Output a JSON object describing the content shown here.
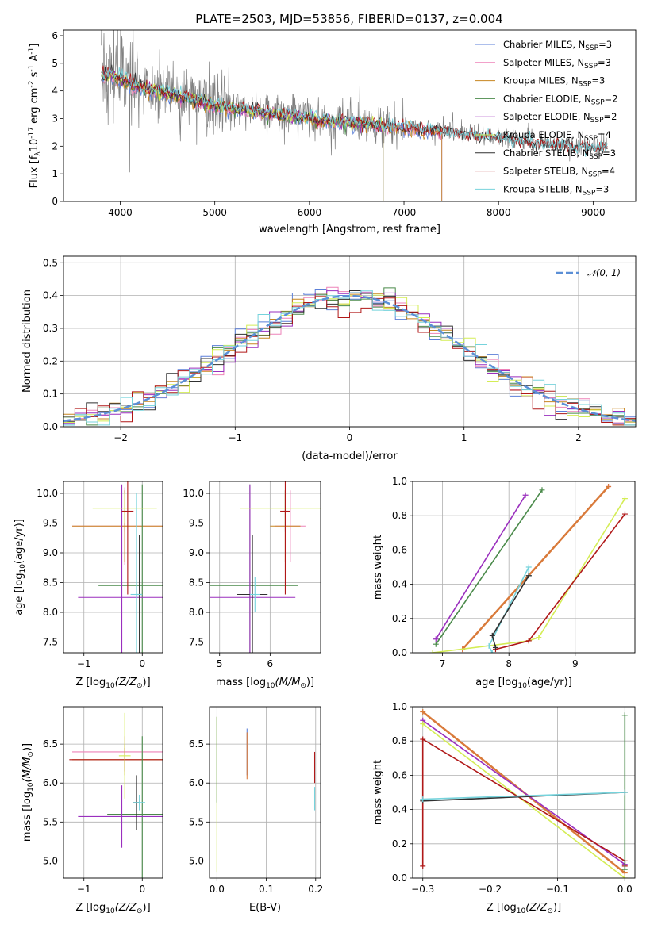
{
  "title": "PLATE=2503, MJD=53856, FIBERID=0137, z=0.004",
  "colors": {
    "observed": "#808080",
    "chabrier_miles": "#5b7fd8",
    "salpeter_miles": "#ee82b8",
    "kroupa_miles": "#c7851f",
    "chabrier_elodie": "#4a8a4a",
    "salpeter_elodie": "#9a2fbe",
    "kroupa_elodie": "#d4ed55",
    "chabrier_stelib": "#303030",
    "salpeter_stelib": "#b01818",
    "kroupa_stelib": "#76d3dc",
    "thick_pair": "#d97a3a",
    "normal_curve": "#5b8fd6"
  },
  "chart_data": [
    {
      "id": "spectrum",
      "type": "line",
      "title": "PLATE=2503, MJD=53856, FIBERID=0137, z=0.004",
      "xlabel": "wavelength [Angstrom, rest frame]",
      "ylabel_main": "Flux [f",
      "ylabel_sub": "λ",
      "ylabel_rest": "10",
      "ylabel_exp": "-17",
      "ylabel_tail": " erg cm",
      "ylabel_exp2": "-2",
      "ylabel_tail2": " s",
      "ylabel_exp3": "-1",
      "ylabel_tail3": " A",
      "ylabel_exp4": "-1",
      "ylabel_end": "]",
      "xlim": [
        3400,
        9450
      ],
      "ylim": [
        0,
        6.2
      ],
      "xticks": [
        "4000",
        "5000",
        "6000",
        "7000",
        "8000",
        "9000"
      ],
      "yticks": [
        "0",
        "1",
        "2",
        "3",
        "4",
        "5",
        "6"
      ],
      "xtick_values": [
        4000,
        5000,
        6000,
        7000,
        8000,
        9000
      ],
      "ytick_values": [
        0,
        1,
        2,
        3,
        4,
        5,
        6
      ],
      "legend_position": "upper right",
      "series": [
        {
          "name": "Chabrier MILES, N",
          "sub": "SSP",
          "suffix": "=3",
          "color_key": "chabrier_miles"
        },
        {
          "name": "Salpeter MILES, N",
          "sub": "SSP",
          "suffix": "=3",
          "color_key": "salpeter_miles"
        },
        {
          "name": "Kroupa MILES, N",
          "sub": "SSP",
          "suffix": "=3",
          "color_key": "kroupa_miles"
        },
        {
          "name": "Chabrier ELODIE, N",
          "sub": "SSP",
          "suffix": "=2",
          "color_key": "chabrier_elodie"
        },
        {
          "name": "Salpeter ELODIE, N",
          "sub": "SSP",
          "suffix": "=2",
          "color_key": "salpeter_elodie"
        },
        {
          "name": "Kroupa ELODIE, N",
          "sub": "SSP",
          "suffix": "=4",
          "color_key": "kroupa_elodie"
        },
        {
          "name": "Chabrier STELIB, N",
          "sub": "SSP",
          "suffix": "=3",
          "color_key": "chabrier_stelib"
        },
        {
          "name": "Salpeter STELIB, N",
          "sub": "SSP",
          "suffix": "=4",
          "color_key": "salpeter_stelib"
        },
        {
          "name": "Kroupa STELIB, N",
          "sub": "SSP",
          "suffix": "=3",
          "color_key": "kroupa_stelib"
        }
      ],
      "continuum": {
        "x": [
          3800,
          3900,
          4000,
          4100,
          4300,
          4500,
          4700,
          4900,
          5200,
          5500,
          5800,
          6100,
          6400,
          6700,
          7000,
          7300,
          7600,
          7900,
          8200,
          8500,
          8800,
          9100
        ],
        "y": [
          4.6,
          4.7,
          4.5,
          4.3,
          4.1,
          3.95,
          3.8,
          3.6,
          3.4,
          3.25,
          3.15,
          3.0,
          2.9,
          2.8,
          2.7,
          2.6,
          2.45,
          2.35,
          2.2,
          2.1,
          2.0,
          1.95
        ]
      }
    },
    {
      "id": "residuals",
      "type": "bar",
      "xlabel": "(data-model)/error",
      "ylabel": "Normed distribution",
      "xlim": [
        -2.5,
        2.5
      ],
      "ylim": [
        0,
        0.52
      ],
      "xticks": [
        "−2",
        "−1",
        "0",
        "1",
        "2"
      ],
      "yticks": [
        "0.0",
        "0.1",
        "0.2",
        "0.3",
        "0.4",
        "0.5"
      ],
      "xtick_values": [
        -2,
        -1,
        0,
        1,
        2
      ],
      "ytick_values": [
        0,
        0.1,
        0.2,
        0.3,
        0.4,
        0.5
      ],
      "legend_label": "𝒩(0, 1)",
      "legend_position": "upper right",
      "grid": true
    },
    {
      "id": "age_vs_Z",
      "type": "scatter",
      "xlabel_main": "Z [log",
      "xlabel_sub": "10",
      "xlabel_mid": "(Z/Z",
      "xlabel_sub2": "⊙",
      "xlabel_end": ")]",
      "ylabel_main": "age  [log",
      "ylabel_sub": "10",
      "ylabel_end": "(age/yr)]",
      "xlim": [
        -1.35,
        0.35
      ],
      "ylim": [
        7.32,
        10.2
      ],
      "xticks": [
        "−1",
        "0"
      ],
      "yticks": [
        "7.5",
        "8.0",
        "8.5",
        "9.0",
        "9.5",
        "10.0"
      ],
      "xtick_values": [
        -1,
        0
      ],
      "ytick_values": [
        7.5,
        8.0,
        8.5,
        9.0,
        9.5,
        10.0
      ],
      "grid": true,
      "points": [
        {
          "color_key": "chabrier_miles",
          "x": -0.3,
          "y": 9.7,
          "xerr": 0.05,
          "yerr": 0.35
        },
        {
          "color_key": "salpeter_miles",
          "x": -0.3,
          "y": 9.45,
          "xerr": 0.9,
          "yerr": 0.65
        },
        {
          "color_key": "kroupa_miles",
          "x": -0.3,
          "y": 9.45,
          "xerr": 0.9,
          "yerr": 0.6
        },
        {
          "color_key": "chabrier_elodie",
          "x": 0.0,
          "y": 8.45,
          "xerr": 0.75,
          "yerr": 1.7
        },
        {
          "color_key": "salpeter_elodie",
          "x": -0.35,
          "y": 8.25,
          "xerr": 0.75,
          "yerr": 1.9
        },
        {
          "color_key": "kroupa_elodie",
          "x": -0.3,
          "y": 9.75,
          "xerr": 0.55,
          "yerr": 0.25
        },
        {
          "color_key": "chabrier_stelib",
          "x": -0.05,
          "y": 8.3,
          "xerr": 0.05,
          "yerr": 1.0
        },
        {
          "color_key": "salpeter_stelib",
          "x": -0.25,
          "y": 9.7,
          "xerr": 0.1,
          "yerr": 1.4
        },
        {
          "color_key": "kroupa_stelib",
          "x": -0.1,
          "y": 8.3,
          "xerr": 0.1,
          "yerr": 1.7
        }
      ]
    },
    {
      "id": "age_vs_mass",
      "type": "scatter",
      "xlabel_main": "mass [log",
      "xlabel_sub": "10",
      "xlabel_mid": "(M/M",
      "xlabel_sub2": "⊙",
      "xlabel_end": ")]",
      "xlim": [
        4.8,
        7.0
      ],
      "ylim": [
        7.32,
        10.2
      ],
      "xticks": [
        "5",
        "6"
      ],
      "yticks": [
        "7.5",
        "8.0",
        "8.5",
        "9.0",
        "9.5",
        "10.0"
      ],
      "xtick_values": [
        5,
        6
      ],
      "ytick_values": [
        7.5,
        8.0,
        8.5,
        9.0,
        9.5,
        10.0
      ],
      "grid": true,
      "points": [
        {
          "color_key": "chabrier_miles",
          "x": 6.3,
          "y": 9.7,
          "xerr": 0.05,
          "yerr": 0.35
        },
        {
          "color_key": "salpeter_miles",
          "x": 6.4,
          "y": 9.45,
          "xerr": 0.3,
          "yerr": 0.6
        },
        {
          "color_key": "kroupa_miles",
          "x": 6.3,
          "y": 9.45,
          "xerr": 0.3,
          "yerr": 0.6
        },
        {
          "color_key": "chabrier_elodie",
          "x": 5.6,
          "y": 8.45,
          "xerr": 0.95,
          "yerr": 1.7
        },
        {
          "color_key": "salpeter_elodie",
          "x": 5.6,
          "y": 8.25,
          "xerr": 0.9,
          "yerr": 1.9
        },
        {
          "color_key": "kroupa_elodie",
          "x": 6.3,
          "y": 9.75,
          "xerr": 0.9,
          "yerr": 0.3
        },
        {
          "color_key": "chabrier_stelib",
          "x": 5.65,
          "y": 8.3,
          "xerr": 0.3,
          "yerr": 1.0
        },
        {
          "color_key": "salpeter_stelib",
          "x": 6.3,
          "y": 9.7,
          "xerr": 0.1,
          "yerr": 1.4
        },
        {
          "color_key": "kroupa_stelib",
          "x": 5.7,
          "y": 8.3,
          "xerr": 0.1,
          "yerr": 0.3
        }
      ]
    },
    {
      "id": "massweight_vs_age",
      "type": "line",
      "xlabel_main": "age  [log",
      "xlabel_sub": "10",
      "xlabel_end": "(age/yr)]",
      "ylabel": "mass weight",
      "xlim": [
        6.55,
        9.9
      ],
      "ylim": [
        0,
        1.0
      ],
      "xticks": [
        "7",
        "8",
        "9"
      ],
      "yticks": [
        "0.0",
        "0.2",
        "0.4",
        "0.6",
        "0.8",
        "1.0"
      ],
      "xtick_values": [
        7,
        8,
        9
      ],
      "ytick_values": [
        0,
        0.2,
        0.4,
        0.6,
        0.8,
        1.0
      ],
      "grid": true,
      "series": [
        {
          "color_key": "chabrier_elodie",
          "x": [
            6.9,
            8.5
          ],
          "y": [
            0.05,
            0.95
          ]
        },
        {
          "color_key": "salpeter_elodie",
          "x": [
            6.9,
            8.25
          ],
          "y": [
            0.08,
            0.92
          ]
        },
        {
          "color_key": "salpeter_miles",
          "x": [
            7.3,
            9.5
          ],
          "y": [
            0.02,
            0.97
          ]
        },
        {
          "color_key": "thick_pair",
          "x": [
            7.3,
            9.5
          ],
          "y": [
            0.02,
            0.97
          ]
        },
        {
          "color_key": "kroupa_elodie",
          "x": [
            6.85,
            8.3,
            8.45,
            9.75
          ],
          "y": [
            0.0,
            0.07,
            0.09,
            0.9
          ]
        },
        {
          "color_key": "salpeter_stelib",
          "x": [
            7.8,
            8.3,
            9.75
          ],
          "y": [
            0.02,
            0.07,
            0.81
          ]
        },
        {
          "color_key": "kroupa_stelib",
          "x": [
            7.75,
            7.7,
            8.3,
            8.3
          ],
          "y": [
            0.0,
            0.04,
            0.5,
            0.45
          ]
        },
        {
          "color_key": "chabrier_stelib",
          "x": [
            7.8,
            7.75,
            8.3,
            8.3
          ],
          "y": [
            0.03,
            0.1,
            0.45,
            0.45
          ]
        }
      ]
    },
    {
      "id": "mass_vs_Z",
      "type": "scatter",
      "xlabel_main": "Z [log",
      "xlabel_sub": "10",
      "xlabel_mid": "(Z/Z",
      "xlabel_sub2": "⊙",
      "xlabel_end": ")]",
      "ylabel_main": "mass [log",
      "ylabel_sub": "10",
      "ylabel_mid": "(M/M",
      "ylabel_sub2": "⊙",
      "ylabel_end": ")]",
      "xlim": [
        -1.35,
        0.35
      ],
      "ylim": [
        4.78,
        6.98
      ],
      "xticks": [
        "−1",
        "0"
      ],
      "yticks": [
        "5.0",
        "5.5",
        "6.0",
        "6.5"
      ],
      "xtick_values": [
        -1,
        0
      ],
      "ytick_values": [
        5.0,
        5.5,
        6.0,
        6.5
      ],
      "grid": true,
      "points": [
        {
          "color_key": "salpeter_miles",
          "x": -0.3,
          "y": 6.4,
          "xerr": 0.9,
          "yerr": 0.2
        },
        {
          "color_key": "kroupa_miles",
          "x": -0.3,
          "y": 6.3,
          "xerr": 0.9,
          "yerr": 0.2
        },
        {
          "color_key": "salpeter_stelib",
          "x": -0.3,
          "y": 6.3,
          "xerr": 0.95,
          "yerr": 0.15
        },
        {
          "color_key": "kroupa_elodie",
          "x": -0.3,
          "y": 6.35,
          "xerr": 0.1,
          "yerr": 0.55
        },
        {
          "color_key": "chabrier_elodie",
          "x": 0.0,
          "y": 5.6,
          "xerr": 0.6,
          "yerr": 1.0
        },
        {
          "color_key": "salpeter_elodie",
          "x": -0.35,
          "y": 5.57,
          "xerr": 0.75,
          "yerr": 0.4
        },
        {
          "color_key": "chabrier_stelib",
          "x": -0.1,
          "y": 5.75,
          "xerr": 0.05,
          "yerr": 0.35
        },
        {
          "color_key": "kroupa_stelib",
          "x": -0.05,
          "y": 5.75,
          "xerr": 0.1,
          "yerr": 0.1
        }
      ]
    },
    {
      "id": "mass_vs_EBV",
      "type": "scatter",
      "xlabel": "E(B-V)",
      "xlim": [
        -0.015,
        0.21
      ],
      "ylim": [
        4.78,
        6.98
      ],
      "xticks": [
        "0.0",
        "0.1",
        "0.2"
      ],
      "yticks": [
        "5.0",
        "5.5",
        "6.0",
        "6.5"
      ],
      "xtick_values": [
        0,
        0.1,
        0.2
      ],
      "ytick_values": [
        5.0,
        5.5,
        6.0,
        6.5
      ],
      "grid": true,
      "points": [
        {
          "color_key": "kroupa_elodie",
          "x": 0.0,
          "y": 5.85,
          "xerr": 0.0,
          "yerr": 1.0
        },
        {
          "color_key": "chabrier_elodie",
          "x": 0.0,
          "y": 6.3,
          "xerr": 0.0,
          "yerr": 0.55
        },
        {
          "color_key": "chabrier_miles",
          "x": 0.061,
          "y": 6.4,
          "xerr": 0.0,
          "yerr": 0.3
        },
        {
          "color_key": "thick_pair",
          "x": 0.061,
          "y": 6.35,
          "xerr": 0.0,
          "yerr": 0.3
        },
        {
          "color_key": "salpeter_stelib",
          "x": 0.198,
          "y": 6.2,
          "xerr": 0.0,
          "yerr": 0.2
        },
        {
          "color_key": "kroupa_stelib",
          "x": 0.198,
          "y": 5.8,
          "xerr": 0.0,
          "yerr": 0.15
        }
      ]
    },
    {
      "id": "massweight_vs_Z",
      "type": "line",
      "xlabel_main": "Z [log",
      "xlabel_sub": "10",
      "xlabel_mid": "(Z/Z",
      "xlabel_sub2": "⊙",
      "xlabel_end": ")]",
      "ylabel": "mass weight",
      "xlim": [
        -0.315,
        0.015
      ],
      "ylim": [
        0,
        1.0
      ],
      "xticks": [
        "−0.3",
        "−0.2",
        "−0.1",
        "0.0"
      ],
      "yticks": [
        "0.0",
        "0.2",
        "0.4",
        "0.6",
        "0.8",
        "1.0"
      ],
      "xtick_values": [
        -0.3,
        -0.2,
        -0.1,
        0.0
      ],
      "ytick_values": [
        0,
        0.2,
        0.4,
        0.6,
        0.8,
        1.0
      ],
      "grid": true,
      "series": [
        {
          "color_key": "thick_pair",
          "x": [
            -0.3,
            0.0
          ],
          "y": [
            0.97,
            0.03
          ]
        },
        {
          "color_key": "salpeter_elodie",
          "x": [
            -0.3,
            0.0
          ],
          "y": [
            0.92,
            0.08
          ]
        },
        {
          "color_key": "kroupa_elodie",
          "x": [
            -0.3,
            0.0
          ],
          "y": [
            0.9,
            0.0
          ]
        },
        {
          "color_key": "salpeter_stelib",
          "x": [
            -0.3,
            -0.3,
            0.0,
            0.0
          ],
          "y": [
            0.07,
            0.81,
            0.1,
            0.07
          ]
        },
        {
          "color_key": "chabrier_elodie",
          "x": [
            0.0,
            0.0
          ],
          "y": [
            0.95,
            0.05
          ]
        },
        {
          "color_key": "chabrier_stelib",
          "x": [
            -0.3,
            0.0
          ],
          "y": [
            0.45,
            0.5
          ]
        },
        {
          "color_key": "kroupa_stelib",
          "x": [
            -0.3,
            0.0
          ],
          "y": [
            0.46,
            0.5
          ]
        }
      ]
    }
  ]
}
